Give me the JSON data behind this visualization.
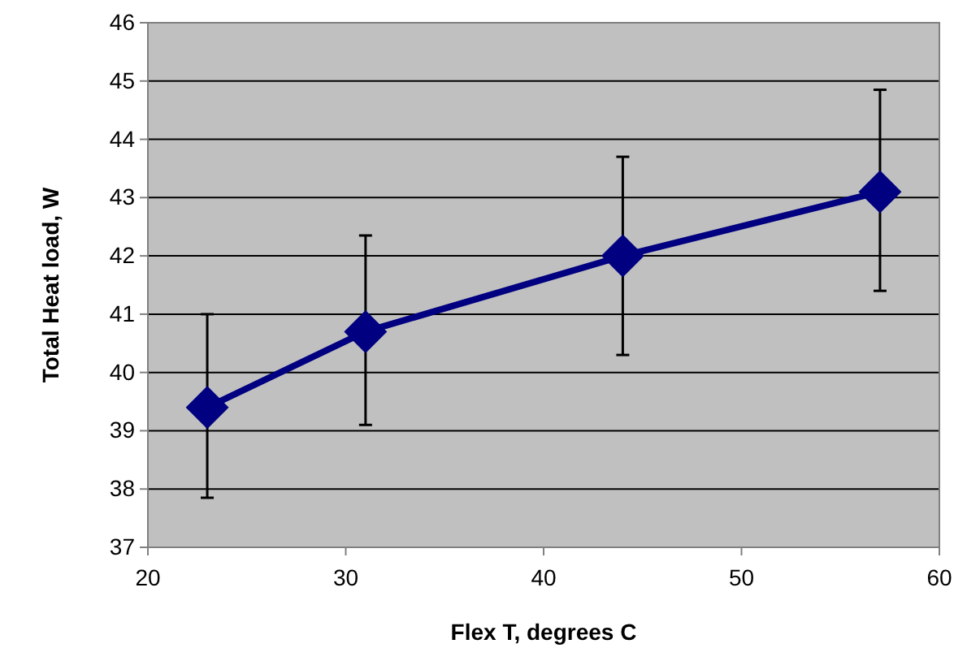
{
  "chart_data": {
    "type": "line",
    "xlabel": "Flex T, degrees C",
    "ylabel": "Total Heat load, W",
    "x": [
      23,
      31,
      44,
      57
    ],
    "series": [
      {
        "color": "#000080",
        "values": [
          39.4,
          40.7,
          42.0,
          43.1
        ],
        "errors": [
          [
            37.85,
            41.0
          ],
          [
            39.1,
            42.35
          ],
          [
            40.3,
            43.7
          ],
          [
            41.4,
            44.85
          ]
        ]
      }
    ],
    "xlim": [
      20,
      60
    ],
    "xticks": [
      20,
      30,
      40,
      50,
      60
    ],
    "ylim": [
      37,
      46
    ],
    "yticks": [
      37,
      38,
      39,
      40,
      41,
      42,
      43,
      44,
      45,
      46
    ],
    "grid": "y",
    "marker": "diamond"
  }
}
